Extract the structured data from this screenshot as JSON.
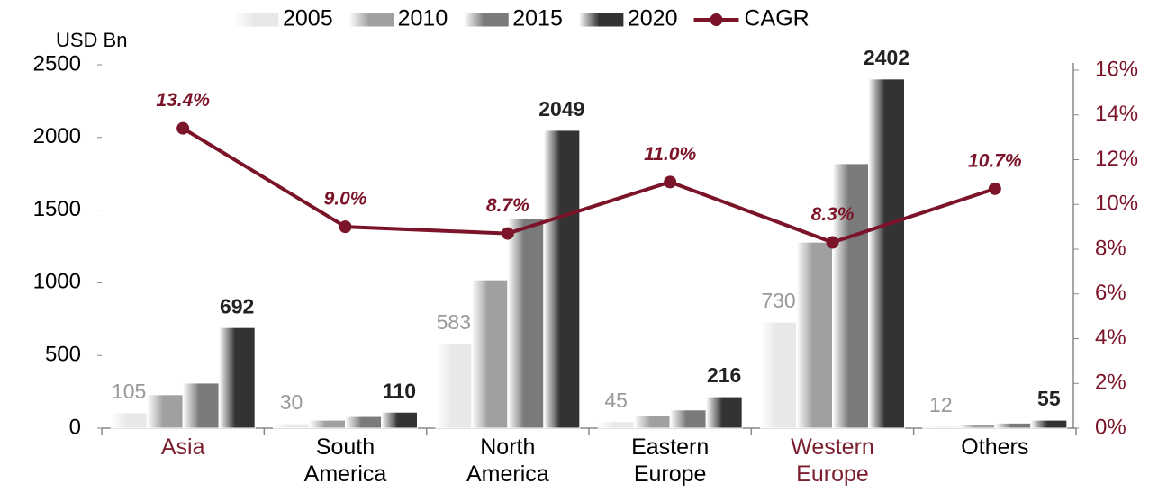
{
  "chart_data": {
    "type": "bar",
    "y_label": "USD Bn",
    "categories": [
      "Asia",
      "South America",
      "North America",
      "Eastern Europe",
      "Western Europe",
      "Others"
    ],
    "category_colors": [
      "#7b1f2e",
      "#000000",
      "#000000",
      "#000000",
      "#7b1f2e",
      "#000000"
    ],
    "series": [
      {
        "name": "2005",
        "color": "#e8e8e8",
        "labels": true,
        "label_color": "#999999",
        "values": [
          105,
          30,
          583,
          45,
          730,
          12
        ]
      },
      {
        "name": "2010",
        "color": "#a0a0a0",
        "labels": false,
        "values": [
          230,
          55,
          1020,
          85,
          1280,
          25
        ]
      },
      {
        "name": "2015",
        "color": "#7a7a7a",
        "labels": false,
        "values": [
          310,
          80,
          1440,
          125,
          1820,
          35
        ]
      },
      {
        "name": "2020",
        "color": "#333333",
        "labels": true,
        "label_color": "#222222",
        "values": [
          692,
          110,
          2049,
          216,
          2402,
          55
        ]
      },
      {
        "name": "CAGR",
        "type": "line",
        "axis": "y2",
        "color": "#7b1428",
        "values": [
          13.4,
          9.0,
          8.7,
          11.0,
          8.3,
          10.7
        ],
        "value_labels": [
          "13.4%",
          "9.0%",
          "8.7%",
          "11.0%",
          "8.3%",
          "10.7%"
        ]
      }
    ],
    "ylim": [
      0,
      2500
    ],
    "yticks": [
      0,
      500,
      1000,
      1500,
      2000,
      2500
    ],
    "y2lim": [
      0,
      16
    ],
    "y2ticks": [
      {
        "value": 0,
        "label": "0%"
      },
      {
        "value": 2,
        "label": "2%"
      },
      {
        "value": 4,
        "label": "4%"
      },
      {
        "value": 6,
        "label": "6%"
      },
      {
        "value": 8,
        "label": "8%"
      },
      {
        "value": 10,
        "label": "10%"
      },
      {
        "value": 12,
        "label": "12%"
      },
      {
        "value": 14,
        "label": "14%"
      },
      {
        "value": 16,
        "label": "16%"
      }
    ],
    "y2_color": "#7b1428",
    "legend": "top"
  }
}
